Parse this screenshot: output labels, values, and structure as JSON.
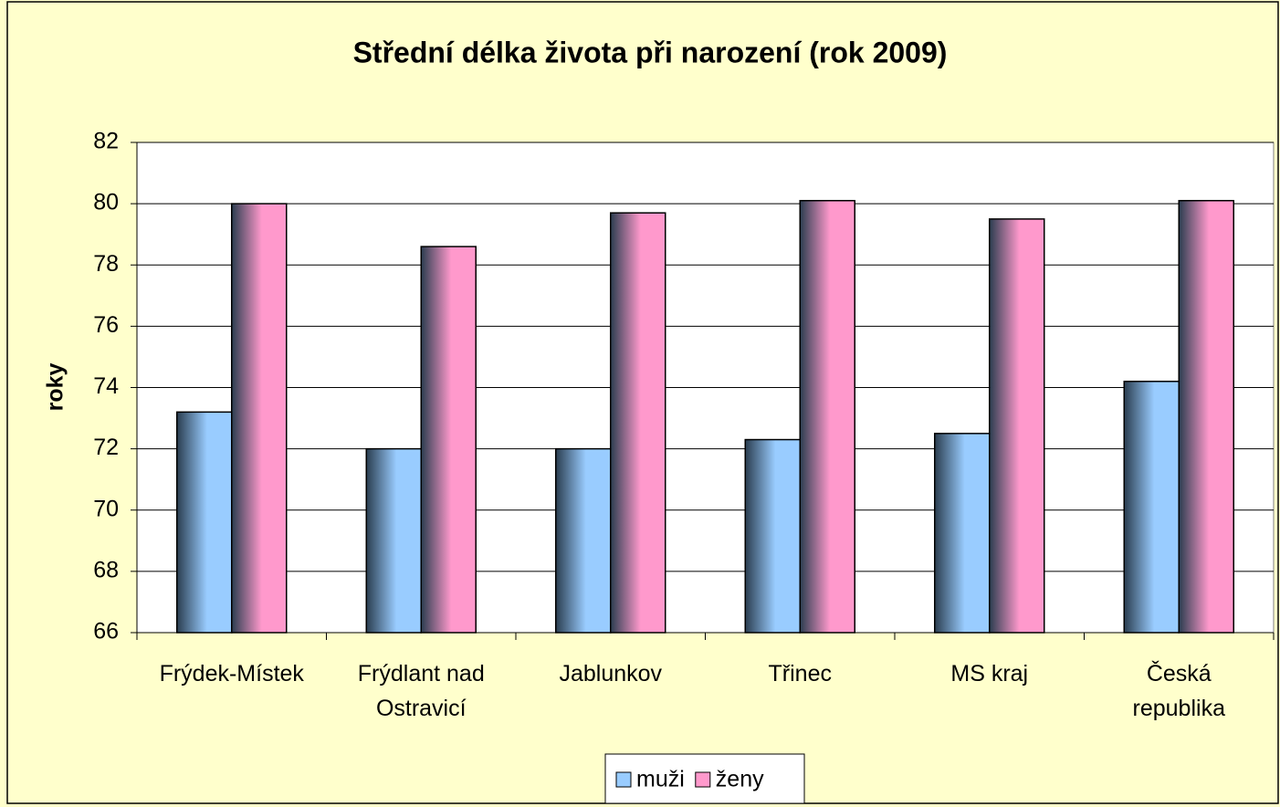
{
  "chart_data": {
    "type": "bar",
    "title": "Střední délka života při narození (rok 2009)",
    "y_label": "roky",
    "categories": [
      "Frýdek-Místek",
      "Frýdlant nad Ostravicí",
      "Jablunkov",
      "Třinec",
      "MS kraj",
      "Česká republika"
    ],
    "series": [
      {
        "name": "muži",
        "color": "#99ccff",
        "values": [
          73.2,
          72.0,
          72.0,
          72.3,
          72.5,
          74.2
        ]
      },
      {
        "name": "ženy",
        "color": "#ff99cc",
        "values": [
          80.0,
          78.6,
          79.7,
          80.1,
          79.5,
          80.1
        ]
      }
    ],
    "ylim": [
      66,
      82
    ],
    "yticks": [
      66,
      68,
      70,
      72,
      74,
      76,
      78,
      80,
      82
    ],
    "grid": true,
    "legend": "bottom"
  }
}
